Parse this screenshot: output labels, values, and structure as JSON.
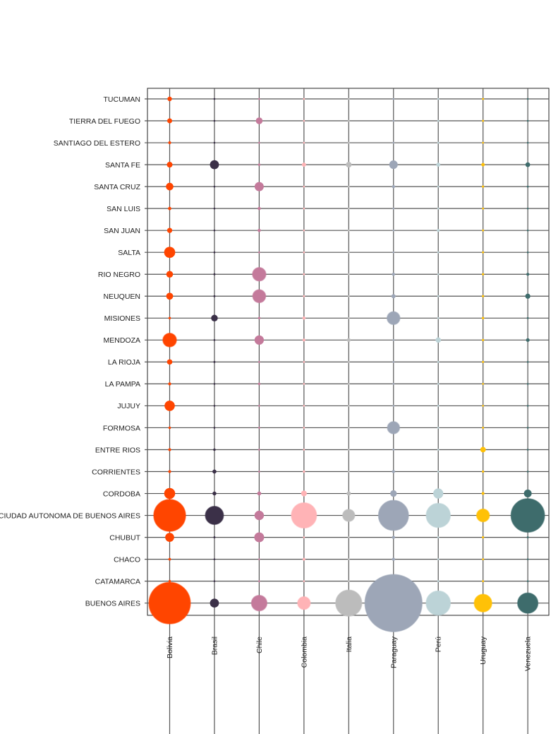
{
  "chart_data": {
    "type": "scatter",
    "subtype": "bubble-matrix",
    "title": "",
    "xlabel": "",
    "ylabel": "",
    "grid": true,
    "legend": "none",
    "countries": [
      {
        "name": "Bolivia",
        "color": "#ff4500"
      },
      {
        "name": "Brasil",
        "color": "#3b3048"
      },
      {
        "name": "Chile",
        "color": "#c47a9b"
      },
      {
        "name": "Colombia",
        "color": "#ffb3b6"
      },
      {
        "name": "Italia",
        "color": "#bcbcbc"
      },
      {
        "name": "Paraguay",
        "color": "#9da6b7"
      },
      {
        "name": "Perú",
        "color": "#bcd3d7"
      },
      {
        "name": "Uruguay",
        "color": "#ffc107"
      },
      {
        "name": "Venezuela",
        "color": "#3e6c6c"
      }
    ],
    "provinces": [
      "TUCUMAN",
      "TIERRA DEL FUEGO",
      "SANTIAGO DEL ESTERO",
      "SANTA FE",
      "SANTA CRUZ",
      "SAN LUIS",
      "SAN JUAN",
      "SALTA",
      "RIO NEGRO",
      "NEUQUEN",
      "MISIONES",
      "MENDOZA",
      "LA RIOJA",
      "LA PAMPA",
      "JUJUY",
      "FORMOSA",
      "ENTRE RIOS",
      "CORRIENTES",
      "CORDOBA",
      "CIUDAD AUTONOMA DE BUENOS AIRES",
      "CHUBUT",
      "CHACO",
      "CATAMARCA",
      "BUENOS AIRES"
    ],
    "values": [
      [
        2.0,
        0.3,
        0.2,
        0.2,
        0.1,
        0.1,
        0.1,
        0.4,
        0.2
      ],
      [
        2.4,
        0.3,
        4.5,
        0.2,
        0.1,
        0.1,
        0.1,
        0.4,
        0.3
      ],
      [
        0.8,
        0.3,
        0.2,
        0.2,
        0.1,
        0.1,
        0.1,
        0.3,
        0.2
      ],
      [
        3.2,
        8.0,
        0.6,
        1.7,
        3.2,
        7.1,
        1.6,
        1.2,
        2.2
      ],
      [
        5.5,
        0.3,
        8.2,
        0.3,
        0.2,
        1.0,
        0.1,
        0.5,
        0.4
      ],
      [
        1.1,
        0.3,
        1.0,
        0.3,
        0.2,
        0.2,
        0.1,
        0.4,
        0.3
      ],
      [
        2.6,
        0.3,
        1.0,
        0.3,
        0.2,
        0.2,
        0.8,
        0.4,
        0.3
      ],
      [
        12.0,
        0.3,
        0.3,
        0.3,
        0.2,
        0.3,
        0.1,
        0.4,
        0.3
      ],
      [
        4.4,
        0.4,
        17.4,
        0.4,
        0.4,
        1.0,
        0.2,
        0.5,
        0.8
      ],
      [
        4.7,
        0.4,
        16.2,
        0.4,
        0.3,
        1.7,
        0.2,
        0.5,
        2.6
      ],
      [
        0.6,
        4.4,
        0.6,
        1.0,
        0.1,
        16.0,
        0.1,
        0.6,
        0.4
      ],
      [
        17.8,
        0.3,
        8.5,
        0.8,
        1.4,
        0.3,
        2.8,
        0.5,
        1.3
      ],
      [
        2.8,
        0.4,
        0.3,
        0.2,
        0.1,
        0.1,
        0.1,
        0.4,
        0.3
      ],
      [
        0.9,
        0.3,
        0.6,
        0.2,
        0.1,
        0.1,
        0.1,
        0.3,
        0.2
      ],
      [
        10.4,
        0.3,
        0.3,
        0.2,
        0.1,
        0.1,
        0.1,
        0.3,
        0.2
      ],
      [
        0.6,
        0.3,
        0.2,
        0.2,
        0.1,
        14.4,
        0.1,
        0.4,
        0.3
      ],
      [
        0.8,
        0.6,
        0.3,
        0.3,
        0.1,
        0.4,
        0.1,
        3.0,
        0.3
      ],
      [
        0.8,
        1.6,
        0.3,
        0.6,
        0.1,
        1.0,
        0.1,
        0.5,
        0.3
      ],
      [
        11.8,
        1.5,
        1.6,
        3.2,
        1.8,
        4.2,
        10.0,
        0.8,
        5.9
      ],
      [
        99.0,
        32.0,
        8.7,
        62.0,
        14.1,
        88.5,
        57.0,
        15.8,
        110.0
      ],
      [
        7.9,
        0.4,
        9.6,
        0.3,
        0.2,
        1.0,
        0.2,
        0.5,
        0.4
      ],
      [
        0.7,
        0.3,
        0.3,
        0.8,
        0.1,
        1.0,
        0.1,
        0.4,
        0.2
      ],
      [
        0.6,
        0.3,
        0.3,
        0.2,
        0.1,
        0.1,
        0.1,
        0.4,
        0.2
      ],
      [
        168.0,
        7.9,
        23.4,
        15.6,
        66.8,
        320.0,
        57.5,
        30.2,
        40.3
      ]
    ]
  }
}
